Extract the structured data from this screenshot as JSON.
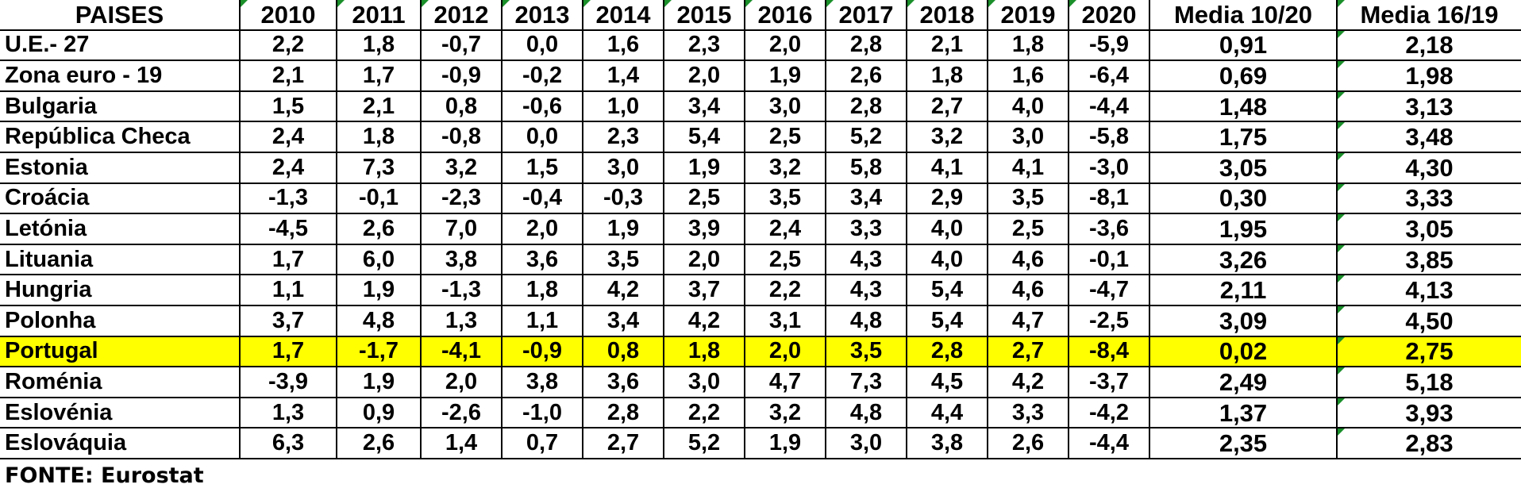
{
  "table": {
    "headers": [
      "PAISES",
      "2010",
      "2011",
      "2012",
      "2013",
      "2014",
      "2015",
      "2016",
      "2017",
      "2018",
      "2019",
      "2020",
      "Media 10/20",
      "Media 16/19"
    ],
    "rows": [
      {
        "country": "U.E.- 27",
        "values": [
          "2,2",
          "1,8",
          "-0,7",
          "0,0",
          "1,6",
          "2,3",
          "2,0",
          "2,8",
          "2,1",
          "1,8",
          "-5,9",
          "0,91",
          "2,18"
        ]
      },
      {
        "country": "Zona euro - 19",
        "values": [
          "2,1",
          "1,7",
          "-0,9",
          "-0,2",
          "1,4",
          "2,0",
          "1,9",
          "2,6",
          "1,8",
          "1,6",
          "-6,4",
          "0,69",
          "1,98"
        ]
      },
      {
        "country": "Bulgaria",
        "values": [
          "1,5",
          "2,1",
          "0,8",
          "-0,6",
          "1,0",
          "3,4",
          "3,0",
          "2,8",
          "2,7",
          "4,0",
          "-4,4",
          "1,48",
          "3,13"
        ]
      },
      {
        "country": "República Checa",
        "values": [
          "2,4",
          "1,8",
          "-0,8",
          "0,0",
          "2,3",
          "5,4",
          "2,5",
          "5,2",
          "3,2",
          "3,0",
          "-5,8",
          "1,75",
          "3,48"
        ]
      },
      {
        "country": "Estonia",
        "values": [
          "2,4",
          "7,3",
          "3,2",
          "1,5",
          "3,0",
          "1,9",
          "3,2",
          "5,8",
          "4,1",
          "4,1",
          "-3,0",
          "3,05",
          "4,30"
        ]
      },
      {
        "country": "Croácia",
        "values": [
          "-1,3",
          "-0,1",
          "-2,3",
          "-0,4",
          "-0,3",
          "2,5",
          "3,5",
          "3,4",
          "2,9",
          "3,5",
          "-8,1",
          "0,30",
          "3,33"
        ]
      },
      {
        "country": "Letónia",
        "values": [
          "-4,5",
          "2,6",
          "7,0",
          "2,0",
          "1,9",
          "3,9",
          "2,4",
          "3,3",
          "4,0",
          "2,5",
          "-3,6",
          "1,95",
          "3,05"
        ]
      },
      {
        "country": "Lituania",
        "values": [
          "1,7",
          "6,0",
          "3,8",
          "3,6",
          "3,5",
          "2,0",
          "2,5",
          "4,3",
          "4,0",
          "4,6",
          "-0,1",
          "3,26",
          "3,85"
        ]
      },
      {
        "country": "Hungria",
        "values": [
          "1,1",
          "1,9",
          "-1,3",
          "1,8",
          "4,2",
          "3,7",
          "2,2",
          "4,3",
          "5,4",
          "4,6",
          "-4,7",
          "2,11",
          "4,13"
        ]
      },
      {
        "country": "Polonha",
        "values": [
          "3,7",
          "4,8",
          "1,3",
          "1,1",
          "3,4",
          "4,2",
          "3,1",
          "4,8",
          "5,4",
          "4,7",
          "-2,5",
          "3,09",
          "4,50"
        ]
      },
      {
        "country": "Portugal",
        "values": [
          "1,7",
          "-1,7",
          "-4,1",
          "-0,9",
          "0,8",
          "1,8",
          "2,0",
          "3,5",
          "2,8",
          "2,7",
          "-8,4",
          "0,02",
          "2,75"
        ],
        "highlight": true
      },
      {
        "country": "Roménia",
        "values": [
          "-3,9",
          "1,9",
          "2,0",
          "3,8",
          "3,6",
          "3,0",
          "4,7",
          "7,3",
          "4,5",
          "4,2",
          "-3,7",
          "2,49",
          "5,18"
        ]
      },
      {
        "country": "Eslovénia",
        "values": [
          "1,3",
          "0,9",
          "-2,6",
          "-1,0",
          "2,8",
          "2,2",
          "3,2",
          "4,8",
          "4,4",
          "3,3",
          "-4,2",
          "1,37",
          "3,93"
        ]
      },
      {
        "country": "Eslováquia",
        "values": [
          "6,3",
          "2,6",
          "1,4",
          "0,7",
          "2,7",
          "5,2",
          "1,9",
          "3,0",
          "3,8",
          "2,6",
          "-4,4",
          "2,35",
          "2,83"
        ]
      }
    ],
    "highlight_color": "#ffff00",
    "comment_marker_color": "#1a8f2a"
  },
  "source": "FONTE: Eurostat"
}
